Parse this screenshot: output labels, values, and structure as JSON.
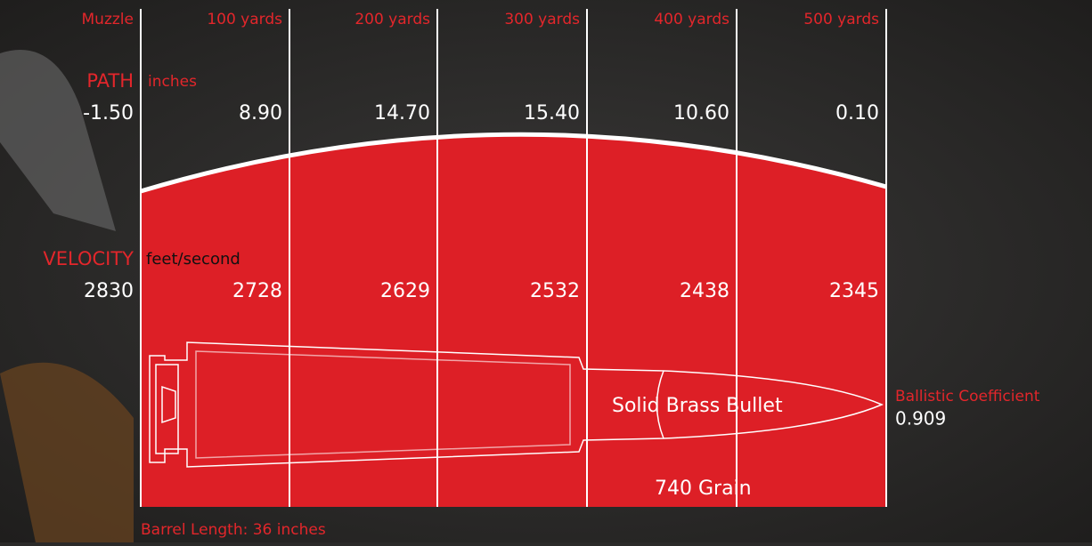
{
  "columns": [
    "Muzzle",
    "100 yards",
    "200 yards",
    "300 yards",
    "400 yards",
    "500 yards"
  ],
  "path": {
    "label": "PATH",
    "unit": "inches",
    "values": [
      "-1.50",
      "8.90",
      "14.70",
      "15.40",
      "10.60",
      "0.10"
    ]
  },
  "velocity": {
    "label": "VELOCITY",
    "unit": "feet/second",
    "values": [
      "2830",
      "2728",
      "2629",
      "2532",
      "2438",
      "2345"
    ]
  },
  "bullet": {
    "label": "Solid Brass Bullet",
    "weight": "740 Grain"
  },
  "ballistic_coefficient": {
    "label": "Ballistic Coefficient",
    "value": "0.909"
  },
  "barrel": "Barrel Length: 36 inches"
}
